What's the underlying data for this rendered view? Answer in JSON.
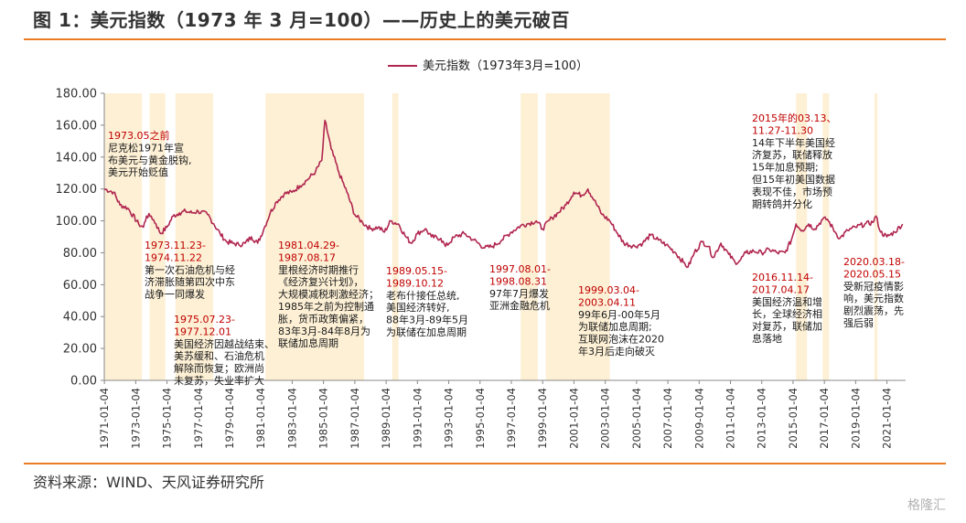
{
  "header": {
    "title": "图 1：美元指数（1973 年 3 月=100）——历史上的美元破百"
  },
  "footer": {
    "source": "资料来源：WIND、天风证券研究所",
    "watermark": "格隆汇"
  },
  "chart_data": {
    "type": "line",
    "title": "",
    "xlabel": "",
    "ylabel": "",
    "ylim": [
      0,
      180
    ],
    "yticks": [
      "0.00",
      "20.00",
      "40.00",
      "60.00",
      "80.00",
      "100.00",
      "120.00",
      "140.00",
      "160.00",
      "180.00"
    ],
    "xticks": [
      "1971-01-04",
      "1973-01-04",
      "1975-01-04",
      "1977-01-04",
      "1979-01-04",
      "1981-01-04",
      "1983-01-04",
      "1985-01-04",
      "1987-01-04",
      "1989-01-04",
      "1991-01-04",
      "1993-01-04",
      "1995-01-04",
      "1997-01-04",
      "1999-01-04",
      "2001-01-04",
      "2003-01-04",
      "2005-01-04",
      "2007-01-04",
      "2009-01-04",
      "2011-01-04",
      "2013-01-04",
      "2015-01-04",
      "2017-01-04",
      "2019-01-04",
      "2021-01-04"
    ],
    "legend": {
      "position": "top-center",
      "label": "美元指数（1973年3月=100）"
    },
    "grid": false,
    "colors": {
      "line": "#b0264f",
      "band": "#fdf0d5",
      "annotation_date": "#c00000",
      "annotation_text": "#1a1a1a"
    },
    "series": [
      {
        "name": "美元指数（1973年3月=100）",
        "x": [
          1971.0,
          1971.6,
          1972.0,
          1972.5,
          1973.2,
          1973.5,
          1973.7,
          1974.0,
          1974.3,
          1974.6,
          1975.0,
          1975.4,
          1975.8,
          1976.2,
          1976.6,
          1977.0,
          1977.6,
          1978.0,
          1978.4,
          1978.8,
          1979.2,
          1979.6,
          1980.0,
          1980.4,
          1980.8,
          1981.2,
          1981.6,
          1982.0,
          1982.5,
          1983.0,
          1983.5,
          1984.0,
          1984.5,
          1984.9,
          1985.1,
          1985.5,
          1986.0,
          1986.5,
          1987.0,
          1987.5,
          1988.0,
          1988.5,
          1988.9,
          1989.3,
          1989.8,
          1990.2,
          1990.6,
          1991.0,
          1991.5,
          1991.9,
          1992.5,
          1992.8,
          1993.4,
          1994.0,
          1994.6,
          1995.3,
          1995.8,
          1996.4,
          1997.0,
          1997.6,
          1998.0,
          1998.6,
          1999.0,
          1999.6,
          2000.0,
          2000.5,
          2001.0,
          2001.5,
          2001.9,
          2002.3,
          2002.8,
          2003.3,
          2003.8,
          2004.2,
          2004.9,
          2005.4,
          2005.9,
          2006.4,
          2006.9,
          2007.5,
          2008.0,
          2008.3,
          2008.7,
          2009.2,
          2009.6,
          2009.9,
          2010.4,
          2010.9,
          2011.3,
          2011.6,
          2012.0,
          2012.5,
          2013.0,
          2013.5,
          2014.0,
          2014.5,
          2014.9,
          2015.2,
          2015.6,
          2016.0,
          2016.4,
          2016.9,
          2017.2,
          2017.7,
          2018.0,
          2018.5,
          2019.0,
          2019.6,
          2020.1,
          2020.3,
          2020.6,
          2021.0,
          2021.5,
          2022.0
        ],
        "values": [
          120,
          118,
          110,
          108,
          98,
          96,
          103,
          103,
          98,
          92,
          96,
          103,
          105,
          106,
          105,
          106,
          104,
          98,
          92,
          87,
          86,
          85,
          86,
          90,
          86,
          95,
          105,
          112,
          117,
          118,
          122,
          126,
          131,
          138,
          163,
          145,
          130,
          118,
          104,
          99,
          95,
          96,
          93,
          100,
          98,
          91,
          86,
          92,
          95,
          90,
          89,
          84,
          90,
          92,
          88,
          83,
          84,
          88,
          93,
          97,
          98,
          100,
          95,
          102,
          105,
          110,
          118,
          116,
          120,
          113,
          104,
          100,
          92,
          86,
          84,
          86,
          91,
          88,
          85,
          80,
          74,
          71,
          80,
          87,
          84,
          77,
          86,
          79,
          74,
          75,
          80,
          81,
          80,
          82,
          80,
          80,
          88,
          98,
          94,
          98,
          95,
          101,
          101,
          93,
          89,
          94,
          96,
          98,
          99,
          103,
          93,
          90,
          93,
          98
        ]
      }
    ],
    "bands": [
      {
        "start": 1971.0,
        "end": 1973.4
      },
      {
        "start": 1973.9,
        "end": 1974.9
      },
      {
        "start": 1975.55,
        "end": 1977.95
      },
      {
        "start": 1981.3,
        "end": 1987.6
      },
      {
        "start": 1989.4,
        "end": 1989.8
      },
      {
        "start": 1997.6,
        "end": 1998.7
      },
      {
        "start": 1999.2,
        "end": 2003.3
      },
      {
        "start": 2015.2,
        "end": 2015.9
      },
      {
        "start": 2016.9,
        "end": 2017.3
      },
      {
        "start": 2020.2,
        "end": 2020.4
      }
    ],
    "annotations": [
      {
        "date": "1973.05之前",
        "text": [
          "尼克松1971年宣",
          "布美元与黄金脱钩,",
          "美元开始贬值"
        ]
      },
      {
        "date": "1973.11.23-\n1974.11.22",
        "text": [
          "第一次石油危机与经",
          "济滞胀随第四次中东",
          "战争一同爆发"
        ]
      },
      {
        "date": "1975.07.23-\n1977.12.01",
        "text": [
          "美国经济因越战结束、",
          "美苏缓和、石油危机",
          "解除而恢复；欧洲尚",
          "未复苏，失业率扩大"
        ]
      },
      {
        "date": "1981.04.29-\n1987.08.17",
        "text": [
          "里根经济时期推行",
          "《经济复兴计划》，",
          "大规模减税刺激经济；",
          "1985年之前为控制通",
          "胀，货币政策偏紧，",
          "83年3月-84年8月为",
          "联储加息周期"
        ]
      },
      {
        "date": "1989.05.15-\n1989.10.12",
        "text": [
          "老布什接任总统,",
          "美国经济转好,",
          "88年3月-89年5月",
          "为联储在加息周期"
        ]
      },
      {
        "date": "1997.08.01-\n1998.08.31",
        "text": [
          "97年7月爆发",
          "亚洲金融危机"
        ]
      },
      {
        "date": "1999.03.04-\n2003.04.11",
        "text": [
          "99年6月-00年5月",
          "为联储加息周期;",
          "互联网泡沫在2020",
          "年3月后走向破灭"
        ]
      },
      {
        "date": "2015年的03.13、\n11.27-11.30",
        "text": [
          "14年下半年美国经",
          "济复苏，联储释放",
          "15年加息预期;",
          "但15年初美国数据",
          "表现不佳，市场预",
          "期转鸽并分化"
        ]
      },
      {
        "date": "2016.11.14-\n2017.04.17",
        "text": [
          "美国经济温和增",
          "长，全球经济相",
          "对复苏，联储加",
          "息落地"
        ]
      },
      {
        "date": "2020.03.18-\n2020.05.15",
        "text": [
          "受新冠疫情影",
          "响，美元指数",
          "剧烈震荡，先",
          "强后弱"
        ]
      }
    ]
  }
}
